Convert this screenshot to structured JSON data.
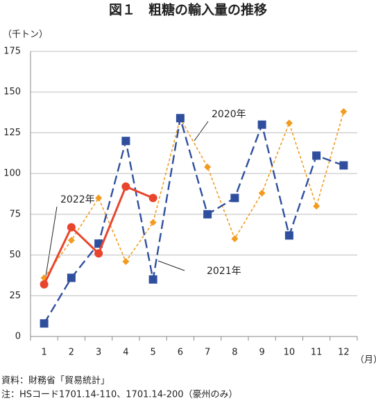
{
  "chart_data": {
    "type": "line",
    "title": "図１　粗糖の輸入量の推移",
    "y_unit": "（千トン）",
    "x_unit": "（月）",
    "categories": [
      "1",
      "2",
      "3",
      "4",
      "5",
      "6",
      "7",
      "8",
      "9",
      "10",
      "11",
      "12"
    ],
    "series": [
      {
        "name": "2020年",
        "color": "#f29b1e",
        "values": [
          36,
          59,
          85,
          46,
          70,
          134,
          104,
          60,
          88,
          131,
          80,
          138
        ]
      },
      {
        "name": "2021年",
        "color": "#2f4f9e",
        "values": [
          8,
          36,
          57,
          120,
          35,
          134,
          75,
          85,
          130,
          62,
          111,
          105
        ]
      },
      {
        "name": "2022年",
        "color": "#e8452c",
        "values": [
          32,
          67,
          51,
          92,
          85,
          null,
          null,
          null,
          null,
          null,
          null,
          null
        ]
      }
    ],
    "ylim": [
      0,
      175
    ],
    "yticks": [
      0,
      25,
      50,
      75,
      100,
      125,
      150,
      175
    ],
    "grid": true,
    "notes": [
      "資料：財務省「貿易統計」",
      "注：HSコード1701.14-110、1701.14-200（豪州のみ）"
    ]
  }
}
